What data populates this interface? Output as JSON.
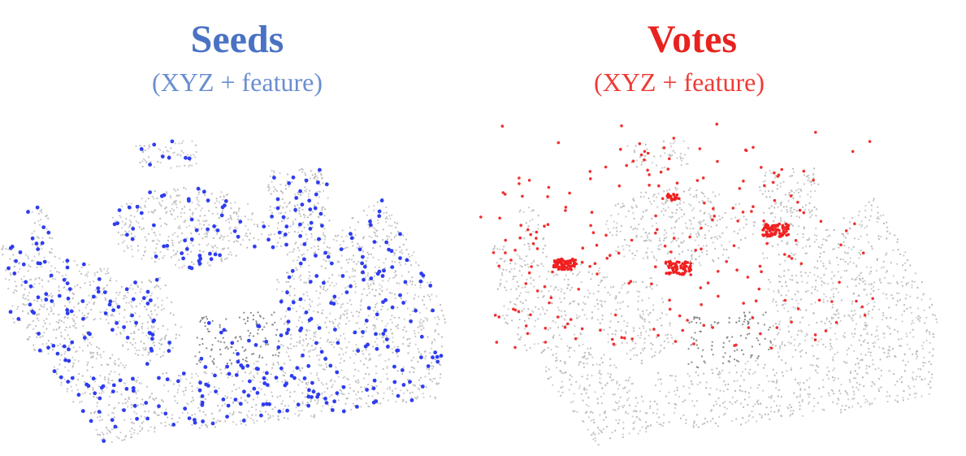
{
  "panels": [
    {
      "title": "Seeds",
      "subtitle": "(XYZ + feature)"
    },
    {
      "title": "Votes",
      "subtitle": "(XYZ + feature)"
    }
  ]
}
